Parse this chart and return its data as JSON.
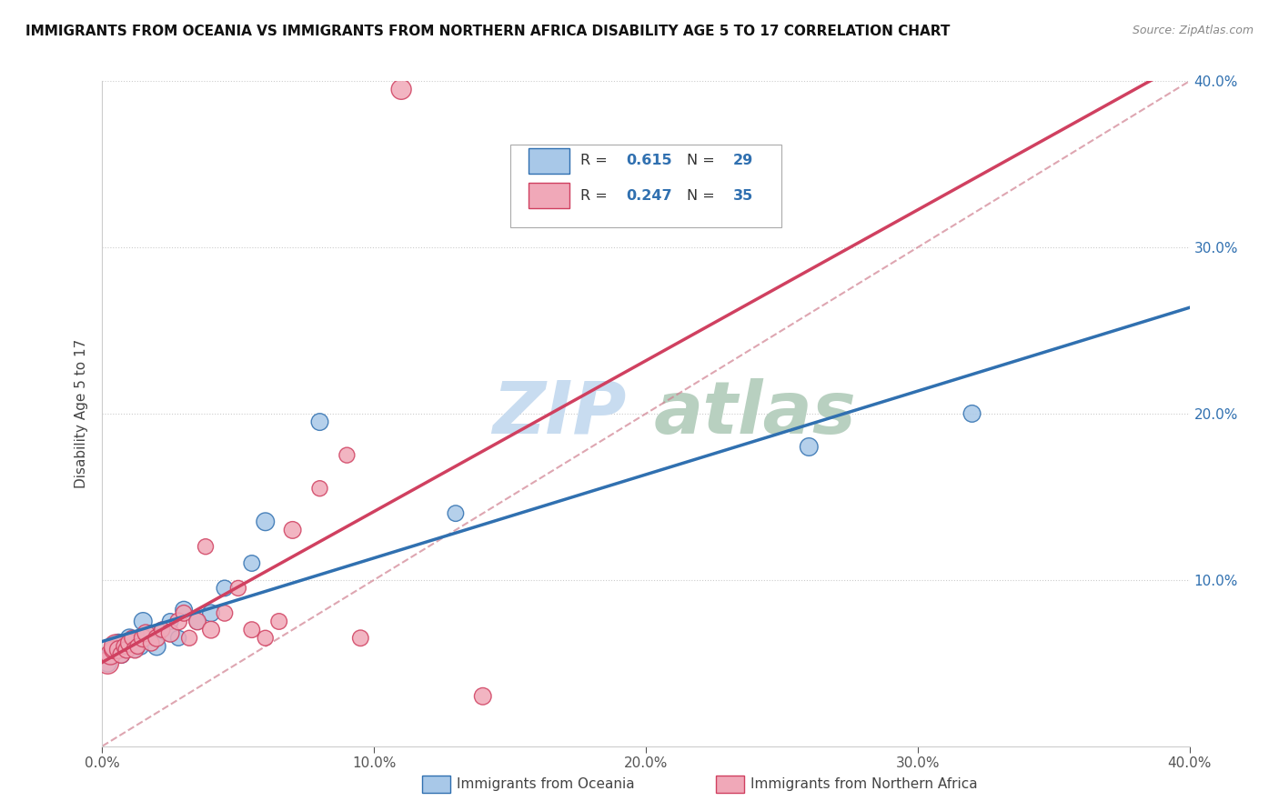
{
  "title": "IMMIGRANTS FROM OCEANIA VS IMMIGRANTS FROM NORTHERN AFRICA DISABILITY AGE 5 TO 17 CORRELATION CHART",
  "source": "Source: ZipAtlas.com",
  "ylabel": "Disability Age 5 to 17",
  "legend_blue_label": "Immigrants from Oceania",
  "legend_pink_label": "Immigrants from Northern Africa",
  "R_blue": 0.615,
  "N_blue": 29,
  "R_pink": 0.247,
  "N_pink": 35,
  "xlim": [
    0.0,
    0.4
  ],
  "ylim": [
    0.0,
    0.4
  ],
  "xticks": [
    0.0,
    0.1,
    0.2,
    0.3,
    0.4
  ],
  "yticks": [
    0.1,
    0.2,
    0.3,
    0.4
  ],
  "blue_color": "#A8C8E8",
  "pink_color": "#F0A8B8",
  "blue_line_color": "#3070B0",
  "pink_line_color": "#D04060",
  "dashed_line_color": "#D08090",
  "watermark_zip_color": "#C8DCF0",
  "watermark_atlas_color": "#B8D0C0",
  "blue_scatter_x": [
    0.002,
    0.003,
    0.004,
    0.005,
    0.006,
    0.007,
    0.008,
    0.01,
    0.01,
    0.012,
    0.014,
    0.015,
    0.016,
    0.018,
    0.02,
    0.022,
    0.025,
    0.025,
    0.028,
    0.03,
    0.035,
    0.04,
    0.045,
    0.055,
    0.06,
    0.08,
    0.13,
    0.26,
    0.32
  ],
  "blue_scatter_y": [
    0.05,
    0.055,
    0.058,
    0.06,
    0.062,
    0.055,
    0.058,
    0.062,
    0.065,
    0.058,
    0.06,
    0.075,
    0.065,
    0.068,
    0.06,
    0.07,
    0.068,
    0.075,
    0.065,
    0.082,
    0.075,
    0.08,
    0.095,
    0.11,
    0.135,
    0.195,
    0.14,
    0.18,
    0.2
  ],
  "blue_scatter_size": [
    200,
    180,
    160,
    300,
    200,
    180,
    150,
    250,
    200,
    150,
    180,
    200,
    160,
    150,
    200,
    150,
    180,
    160,
    150,
    180,
    160,
    180,
    160,
    160,
    200,
    180,
    160,
    200,
    180
  ],
  "pink_scatter_x": [
    0.002,
    0.003,
    0.004,
    0.005,
    0.006,
    0.007,
    0.008,
    0.009,
    0.01,
    0.011,
    0.012,
    0.013,
    0.015,
    0.016,
    0.018,
    0.02,
    0.022,
    0.025,
    0.028,
    0.03,
    0.032,
    0.035,
    0.038,
    0.04,
    0.045,
    0.05,
    0.055,
    0.06,
    0.065,
    0.07,
    0.08,
    0.09,
    0.095,
    0.11,
    0.14
  ],
  "pink_scatter_y": [
    0.05,
    0.055,
    0.058,
    0.06,
    0.058,
    0.055,
    0.06,
    0.058,
    0.062,
    0.065,
    0.058,
    0.06,
    0.065,
    0.068,
    0.062,
    0.065,
    0.07,
    0.068,
    0.075,
    0.08,
    0.065,
    0.075,
    0.12,
    0.07,
    0.08,
    0.095,
    0.07,
    0.065,
    0.075,
    0.13,
    0.155,
    0.175,
    0.065,
    0.395,
    0.03
  ],
  "pink_scatter_size": [
    300,
    250,
    200,
    350,
    200,
    180,
    150,
    180,
    200,
    150,
    180,
    150,
    200,
    180,
    160,
    180,
    150,
    200,
    180,
    160,
    150,
    180,
    150,
    180,
    160,
    150,
    160,
    150,
    160,
    180,
    150,
    150,
    160,
    250,
    180
  ]
}
